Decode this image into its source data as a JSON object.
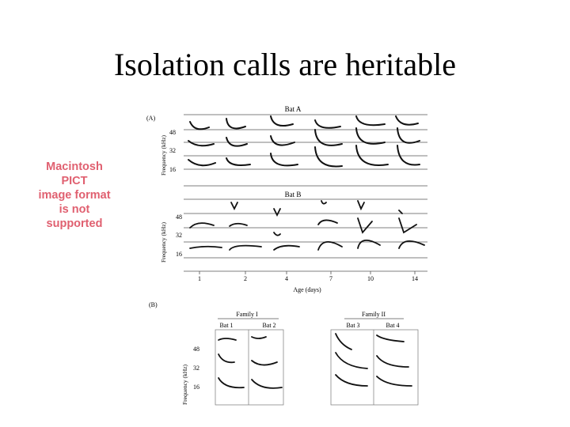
{
  "slide": {
    "title": "Isolation calls are heritable"
  },
  "placeholder": {
    "lines": [
      "Macintosh PICT",
      "image format",
      "is not supported"
    ],
    "color": "#e06070"
  },
  "figure": {
    "panel_a": {
      "tag": "(A)",
      "bat_a_title": "Bat A",
      "bat_b_title": "Bat B",
      "y_label": "Frequency (kHz)",
      "y_ticks": [
        "48",
        "32",
        "16"
      ],
      "x_ticks": [
        "1",
        "2",
        "4",
        "7",
        "10",
        "14"
      ],
      "x_label": "Age (days)"
    },
    "panel_b": {
      "tag": "(B)",
      "family_1": "Family I",
      "family_2": "Family II",
      "bats": [
        "Bat 1",
        "Bat 2",
        "Bat 3",
        "Bat 4"
      ],
      "y_label": "Frequency (kHz)",
      "y_ticks": [
        "48",
        "32",
        "16"
      ]
    }
  }
}
